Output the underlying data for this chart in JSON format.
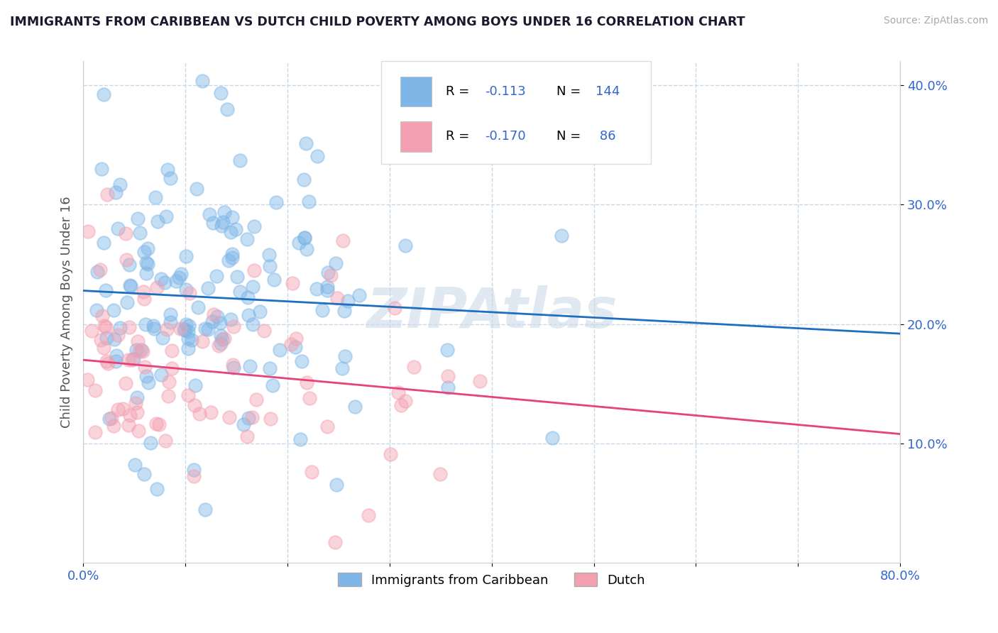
{
  "title": "IMMIGRANTS FROM CARIBBEAN VS DUTCH CHILD POVERTY AMONG BOYS UNDER 16 CORRELATION CHART",
  "source": "Source: ZipAtlas.com",
  "ylabel": "Child Poverty Among Boys Under 16",
  "xlim": [
    0.0,
    0.8
  ],
  "ylim": [
    0.0,
    0.42
  ],
  "xticks": [
    0.0,
    0.1,
    0.2,
    0.3,
    0.4,
    0.5,
    0.6,
    0.7,
    0.8
  ],
  "yticks": [
    0.1,
    0.2,
    0.3,
    0.4
  ],
  "series1_color": "#7EB6E8",
  "series2_color": "#F4A0B0",
  "line1_color": "#1E6FBF",
  "line2_color": "#E8427A",
  "R1": -0.113,
  "N1": 144,
  "R2": -0.17,
  "N2": 86,
  "legend_label1": "Immigrants from Caribbean",
  "legend_label2": "Dutch",
  "watermark": "ZIPAtlas",
  "background_color": "#ffffff",
  "grid_color": "#c8d8e8",
  "title_color": "#1a1a2e",
  "axis_label_color": "#555555",
  "tick_color": "#3366cc",
  "marker_size": 180,
  "marker_alpha": 0.45,
  "marker_edge_alpha": 0.8,
  "seed1": 42,
  "seed2": 99,
  "line1_x": [
    0.0,
    0.8
  ],
  "line1_y": [
    0.228,
    0.192
  ],
  "line2_x": [
    0.0,
    0.8
  ],
  "line2_y": [
    0.17,
    0.108
  ]
}
